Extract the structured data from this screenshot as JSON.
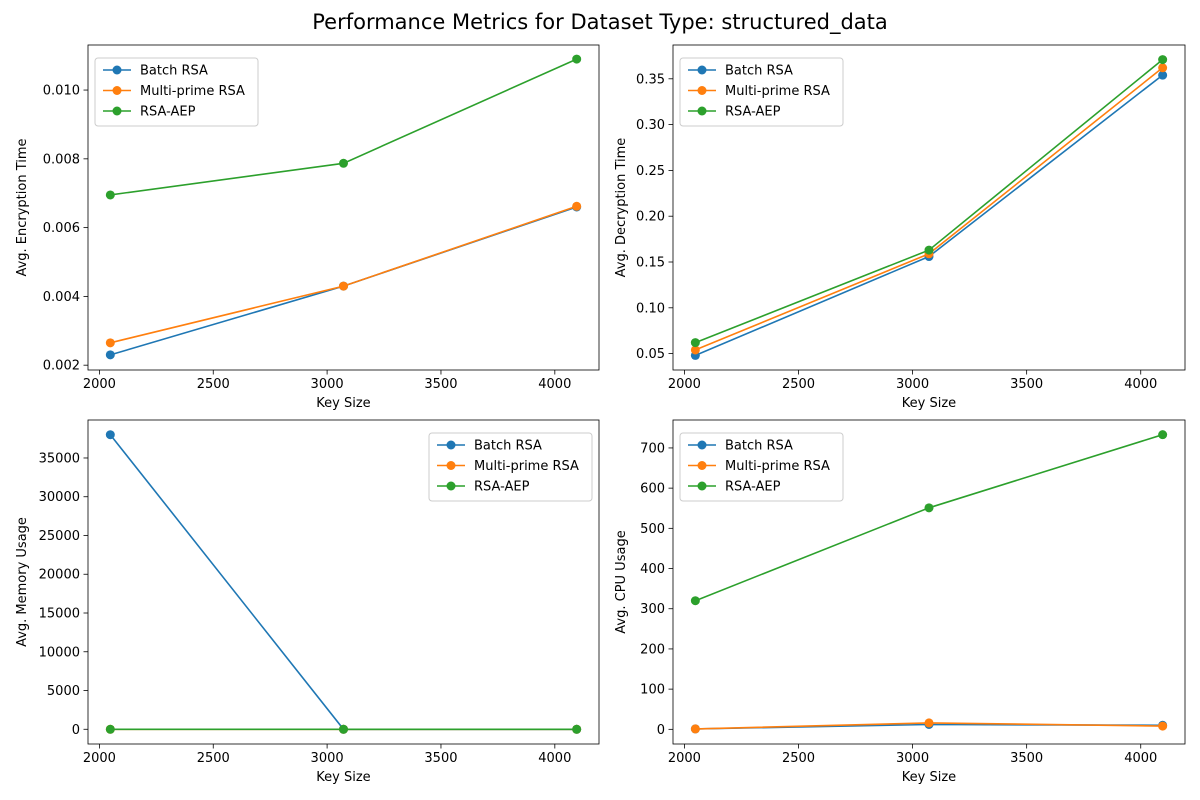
{
  "figure": {
    "title": "Performance Metrics for Dataset Type: structured_data"
  },
  "chart_data": [
    {
      "type": "line",
      "xlabel": "Key Size",
      "ylabel": "Avg. Encryption Time",
      "x": [
        2048,
        3072,
        4096
      ],
      "xlim": [
        1950,
        4194
      ],
      "ylim": [
        0.00186,
        0.01131
      ],
      "xticks": [
        2000,
        2500,
        3000,
        3500,
        4000
      ],
      "yticks": [
        0.002,
        0.004,
        0.006,
        0.008,
        0.01
      ],
      "ytick_labels": [
        "0.002",
        "0.004",
        "0.006",
        "0.008",
        "0.010"
      ],
      "legend_loc": "upper left",
      "series": [
        {
          "name": "Batch RSA",
          "color": "#1f77b4",
          "values": [
            0.0023,
            0.0043,
            0.0066
          ]
        },
        {
          "name": "Multi-prime RSA",
          "color": "#ff7f0e",
          "values": [
            0.00265,
            0.0043,
            0.00662
          ]
        },
        {
          "name": "RSA-AEP",
          "color": "#2ca02c",
          "values": [
            0.00695,
            0.00787,
            0.0109
          ]
        }
      ]
    },
    {
      "type": "line",
      "xlabel": "Key Size",
      "ylabel": "Avg. Decryption Time",
      "x": [
        2048,
        3072,
        4096
      ],
      "xlim": [
        1950,
        4194
      ],
      "ylim": [
        0.0321,
        0.3869
      ],
      "xticks": [
        2000,
        2500,
        3000,
        3500,
        4000
      ],
      "yticks": [
        0.05,
        0.1,
        0.15,
        0.2,
        0.25,
        0.3,
        0.35
      ],
      "ytick_labels": [
        "0.05",
        "0.10",
        "0.15",
        "0.20",
        "0.25",
        "0.30",
        "0.35"
      ],
      "legend_loc": "upper left",
      "series": [
        {
          "name": "Batch RSA",
          "color": "#1f77b4",
          "values": [
            0.048,
            0.156,
            0.354
          ]
        },
        {
          "name": "Multi-prime RSA",
          "color": "#ff7f0e",
          "values": [
            0.054,
            0.159,
            0.362
          ]
        },
        {
          "name": "RSA-AEP",
          "color": "#2ca02c",
          "values": [
            0.062,
            0.163,
            0.371
          ]
        }
      ]
    },
    {
      "type": "line",
      "xlabel": "Key Size",
      "ylabel": "Avg. Memory Usage",
      "x": [
        2048,
        3072,
        4096
      ],
      "xlim": [
        1950,
        4194
      ],
      "ylim": [
        -1900,
        39900
      ],
      "xticks": [
        2000,
        2500,
        3000,
        3500,
        4000
      ],
      "yticks": [
        0,
        5000,
        10000,
        15000,
        20000,
        25000,
        30000,
        35000
      ],
      "ytick_labels": [
        "0",
        "5000",
        "10000",
        "15000",
        "20000",
        "25000",
        "30000",
        "35000"
      ],
      "legend_loc": "upper right",
      "series": [
        {
          "name": "Batch RSA",
          "color": "#1f77b4",
          "values": [
            38000,
            0,
            0
          ]
        },
        {
          "name": "Multi-prime RSA",
          "color": "#ff7f0e",
          "values": [
            0,
            0,
            0
          ]
        },
        {
          "name": "RSA-AEP",
          "color": "#2ca02c",
          "values": [
            0,
            0,
            0
          ]
        }
      ]
    },
    {
      "type": "line",
      "xlabel": "Key Size",
      "ylabel": "Avg. CPU Usage",
      "x": [
        2048,
        3072,
        4096
      ],
      "xlim": [
        1950,
        4194
      ],
      "ylim": [
        -36.5,
        769.5
      ],
      "xticks": [
        2000,
        2500,
        3000,
        3500,
        4000
      ],
      "yticks": [
        0,
        100,
        200,
        300,
        400,
        500,
        600,
        700
      ],
      "ytick_labels": [
        "0",
        "100",
        "200",
        "300",
        "400",
        "500",
        "600",
        "700"
      ],
      "legend_loc": "upper left",
      "series": [
        {
          "name": "Batch RSA",
          "color": "#1f77b4",
          "values": [
            1,
            12,
            10
          ]
        },
        {
          "name": "Multi-prime RSA",
          "color": "#ff7f0e",
          "values": [
            1,
            16,
            8
          ]
        },
        {
          "name": "RSA-AEP",
          "color": "#2ca02c",
          "values": [
            320,
            551,
            733
          ]
        }
      ]
    }
  ]
}
